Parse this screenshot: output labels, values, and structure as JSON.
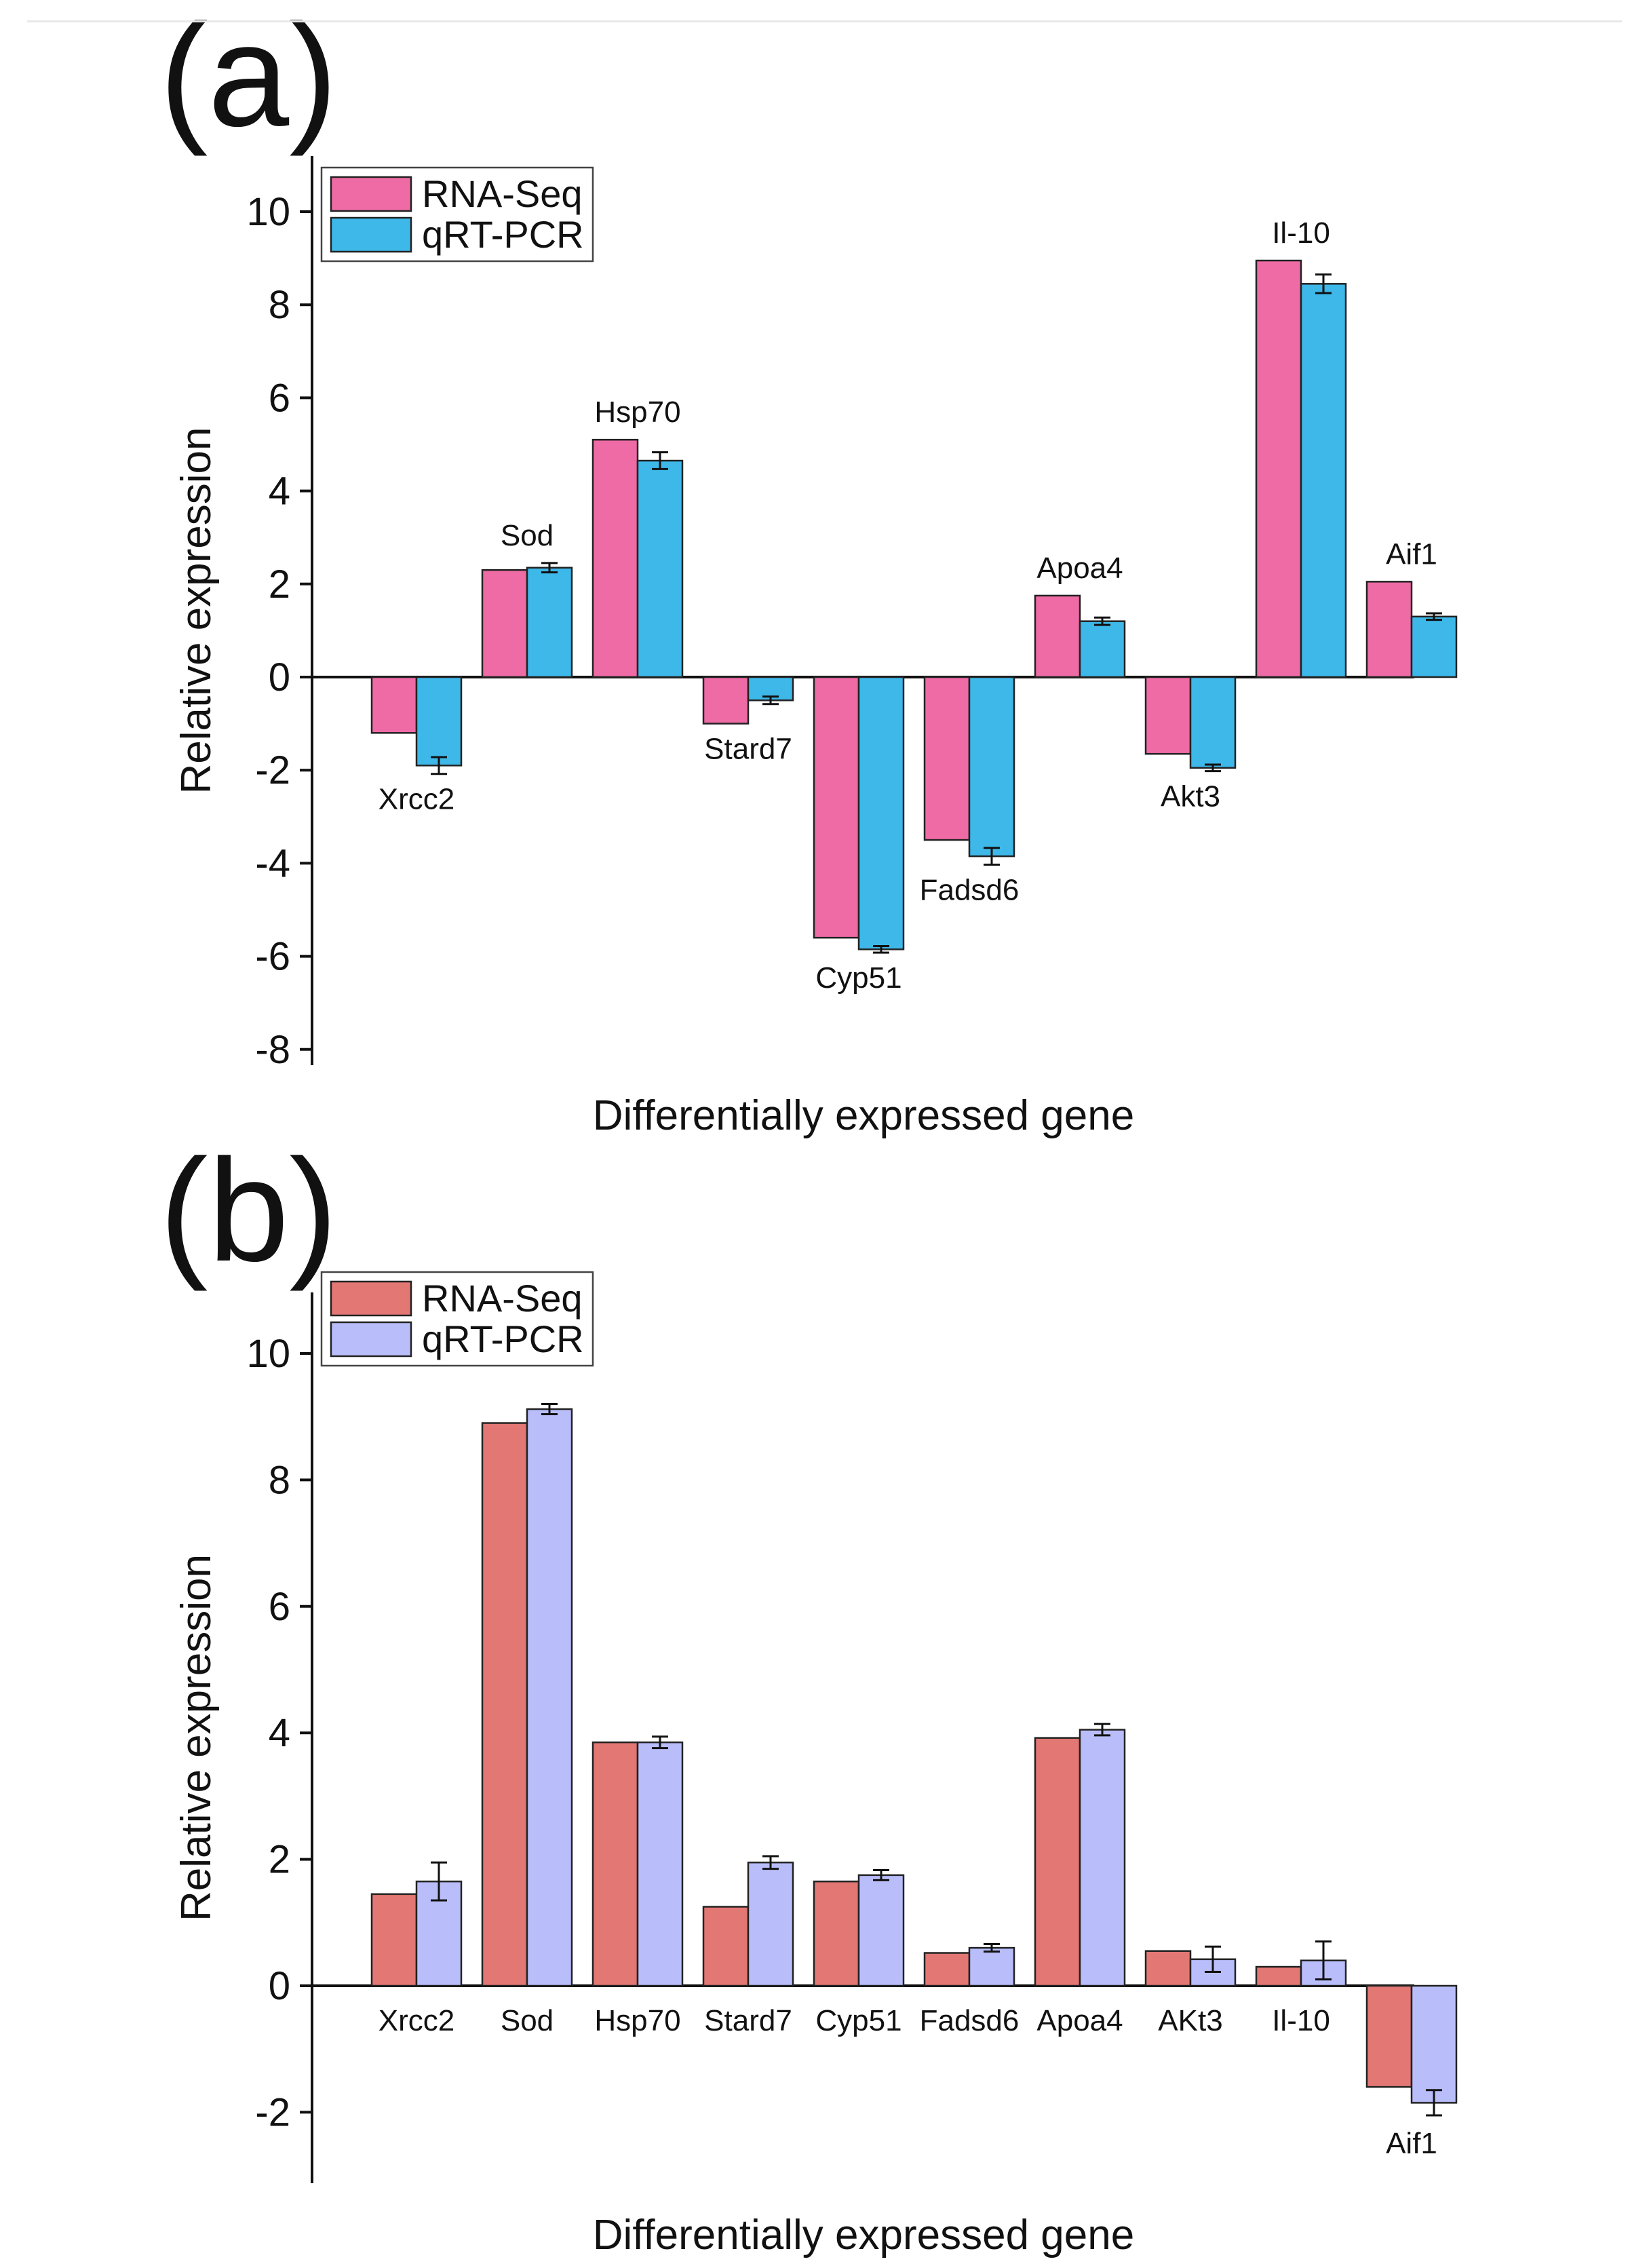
{
  "colors": {
    "panel_a_rna": "#EE6BA5",
    "panel_a_qpcr": "#3DB8E9",
    "panel_b_rna": "#E27774",
    "panel_b_qpcr": "#B9BEFB",
    "axis": "#111111",
    "border": "#222222"
  },
  "chart_data": [
    {
      "type": "bar",
      "panel_label": "(a)",
      "title": "",
      "xlabel": "Differentially expressed gene",
      "ylabel": "Relative expression",
      "ylim": [
        -8.3,
        11
      ],
      "yticks": [
        -8,
        -6,
        -4,
        -2,
        0,
        2,
        4,
        6,
        8,
        10
      ],
      "ytick_labels": [
        "-8",
        "-6",
        "-4",
        "-2",
        "0",
        "2",
        "4",
        "6",
        "8",
        "10"
      ],
      "categories": [
        "Xrcc2",
        "Sod",
        "Hsp70",
        "Stard7",
        "Cyp51",
        "Fadsd6",
        "Apoa4",
        "Akt3",
        "Il-10",
        "Aif1"
      ],
      "legend": {
        "position": "top-left",
        "entries": [
          "RNA-Seq",
          "qRT-PCR"
        ]
      },
      "series": [
        {
          "name": "RNA-Seq",
          "values": [
            -1.2,
            2.3,
            5.1,
            -1.0,
            -5.6,
            -3.5,
            1.75,
            -1.65,
            8.95,
            2.05
          ],
          "error": [
            0,
            0,
            0,
            0,
            0,
            0,
            0,
            0,
            0,
            0
          ]
        },
        {
          "name": "qRT-PCR",
          "values": [
            -1.9,
            2.35,
            4.65,
            -0.5,
            -5.85,
            -3.85,
            1.2,
            -1.95,
            8.45,
            1.3
          ],
          "error": [
            0.18,
            0.1,
            0.18,
            0.08,
            0.07,
            0.18,
            0.08,
            0.07,
            0.2,
            0.07
          ]
        }
      ]
    },
    {
      "type": "bar",
      "panel_label": "(b)",
      "title": "",
      "xlabel": "Differentially expressed gene",
      "ylabel": "Relative expression",
      "ylim": [
        -3.1,
        11
      ],
      "yticks": [
        -2,
        0,
        2,
        4,
        6,
        8,
        10
      ],
      "ytick_labels": [
        "-2",
        "0",
        "2",
        "4",
        "6",
        "8",
        "10"
      ],
      "categories": [
        "Xrcc2",
        "Sod",
        "Hsp70",
        "Stard7",
        "Cyp51",
        "Fadsd6",
        "Apoa4",
        "AKt3",
        "Il-10",
        "Aif1"
      ],
      "legend": {
        "position": "top-left",
        "entries": [
          "RNA-Seq",
          "qRT-PCR"
        ]
      },
      "series": [
        {
          "name": "RNA-Seq",
          "values": [
            1.45,
            8.9,
            3.85,
            1.25,
            1.65,
            0.52,
            3.92,
            0.55,
            0.3,
            -1.6
          ],
          "error": [
            0,
            0,
            0,
            0,
            0,
            0,
            0,
            0,
            0,
            0
          ]
        },
        {
          "name": "qRT-PCR",
          "values": [
            1.65,
            9.12,
            3.85,
            1.95,
            1.75,
            0.6,
            4.05,
            0.42,
            0.4,
            -1.85
          ],
          "error": [
            0.3,
            0.08,
            0.09,
            0.1,
            0.08,
            0.06,
            0.09,
            0.2,
            0.3,
            0.2
          ]
        }
      ]
    }
  ]
}
